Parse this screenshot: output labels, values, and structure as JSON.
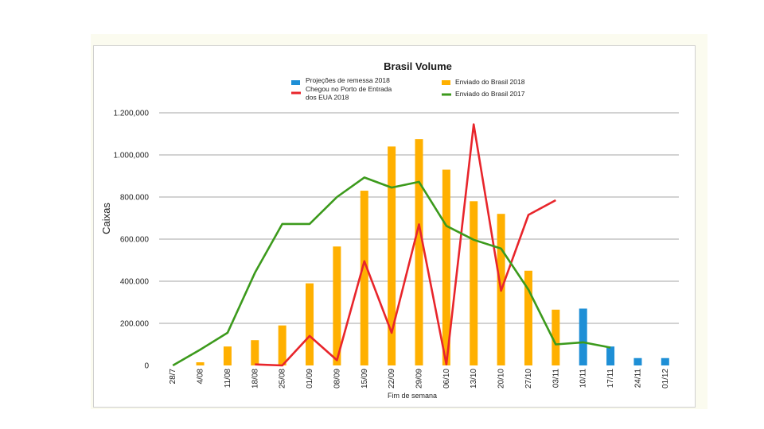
{
  "chart_data": {
    "type": "bar",
    "title": "Brasil  Volume",
    "ylabel": "Caixas",
    "xlabel": "Fim de semana",
    "ylim": [
      0,
      1200000
    ],
    "y_ticks": [
      0,
      200000,
      400000,
      600000,
      800000,
      1000000,
      1200000
    ],
    "y_tick_labels": [
      "0",
      "200.000",
      "400.000",
      "600.000",
      "800.000",
      "1.000,000",
      "1.200,000"
    ],
    "categories": [
      "28/7",
      "4/08",
      "11/08",
      "18/08",
      "25/08",
      "01/09",
      "08/09",
      "15/09",
      "22/09",
      "29/09",
      "06/10",
      "13/10",
      "20/10",
      "27/10",
      "03/11",
      "10/11",
      "17/11",
      "24/11",
      "01/12"
    ],
    "grid": true,
    "legend_position": "top",
    "series": [
      {
        "name": "Projeções de remessa  2018",
        "kind": "bar",
        "color": "#1e8fd6",
        "values": [
          null,
          null,
          null,
          null,
          null,
          null,
          null,
          null,
          null,
          null,
          null,
          null,
          null,
          null,
          null,
          270000,
          90000,
          35000,
          35000
        ]
      },
      {
        "name": "Enviado do Brasil 2018",
        "kind": "bar",
        "color": "#ffb000",
        "values": [
          null,
          15000,
          90000,
          120000,
          190000,
          390000,
          565000,
          830000,
          1040000,
          1075000,
          930000,
          780000,
          720000,
          450000,
          265000,
          null,
          null,
          null,
          null
        ]
      },
      {
        "name": "Chegou no Porto de Entrada dos EUA 2018",
        "kind": "line",
        "color": "#e8252b",
        "values": [
          null,
          null,
          null,
          5000,
          0,
          140000,
          25000,
          495000,
          155000,
          670000,
          5000,
          1145000,
          355000,
          715000,
          785000,
          null,
          null,
          null,
          null
        ]
      },
      {
        "name": "Enviado do Brasil 2017",
        "kind": "line",
        "color": "#3c9a1c",
        "values": [
          0,
          75000,
          155000,
          440000,
          672000,
          672000,
          800000,
          893000,
          845000,
          872000,
          663000,
          597000,
          555000,
          360000,
          100000,
          110000,
          85000,
          null,
          null
        ]
      }
    ]
  }
}
